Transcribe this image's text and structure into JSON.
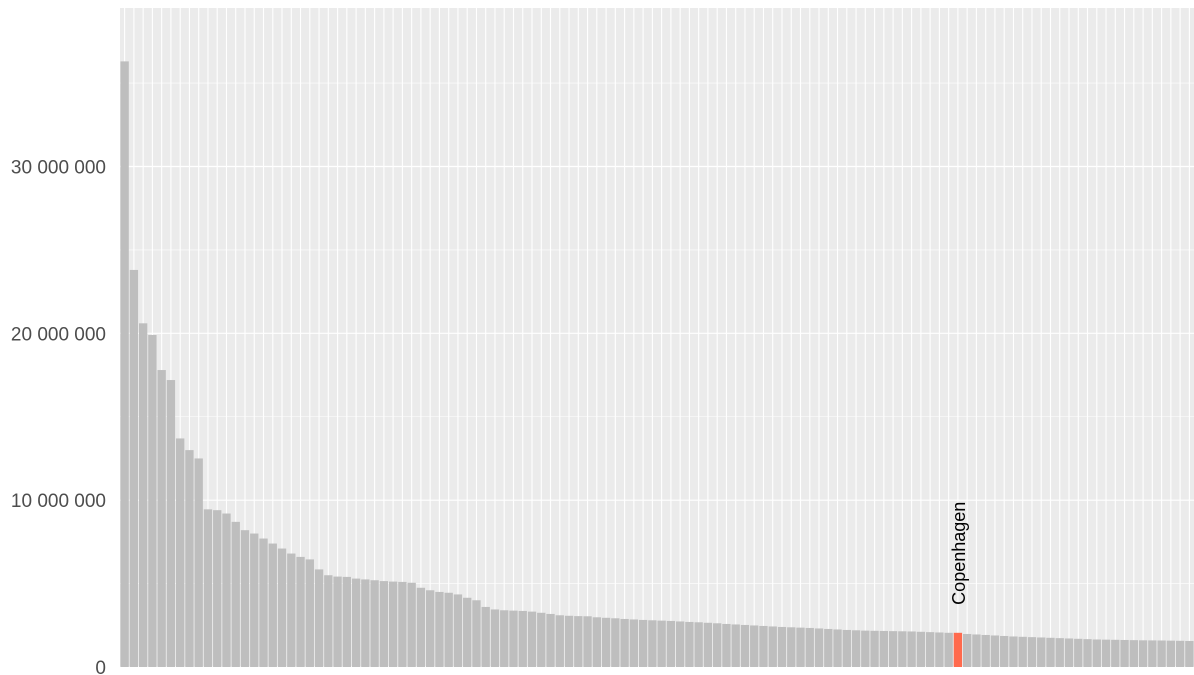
{
  "chart_data": {
    "type": "bar",
    "title": "",
    "xlabel": "",
    "ylabel": "",
    "ylim": [
      0,
      39500000
    ],
    "yticks": [
      0,
      10000000,
      20000000,
      30000000
    ],
    "ytick_labels": [
      "0",
      "10 000 000",
      "20 000 000",
      "30 000 000"
    ],
    "grid": true,
    "colors": {
      "panel": "#EBEBEB",
      "grid": "#FFFFFF",
      "bar": "#BEBEBE",
      "highlight": "#FF6A4D",
      "tick_label": "#4D4D4D",
      "annotation": "#000000"
    },
    "highlight_index": 90,
    "annotation": "Copenhagen",
    "values": [
      36300000,
      23800000,
      20600000,
      19900000,
      17800000,
      17200000,
      13700000,
      13000000,
      12500000,
      9450000,
      9400000,
      9200000,
      8700000,
      8200000,
      8000000,
      7700000,
      7400000,
      7100000,
      6800000,
      6600000,
      6450000,
      5850000,
      5500000,
      5420000,
      5400000,
      5300000,
      5250000,
      5200000,
      5150000,
      5120000,
      5100000,
      5050000,
      4750000,
      4600000,
      4500000,
      4450000,
      4350000,
      4150000,
      4000000,
      3600000,
      3450000,
      3400000,
      3380000,
      3360000,
      3320000,
      3250000,
      3180000,
      3100000,
      3070000,
      3050000,
      3040000,
      2980000,
      2950000,
      2920000,
      2880000,
      2850000,
      2820000,
      2800000,
      2780000,
      2760000,
      2730000,
      2700000,
      2680000,
      2650000,
      2620000,
      2580000,
      2550000,
      2520000,
      2490000,
      2460000,
      2430000,
      2400000,
      2380000,
      2360000,
      2340000,
      2310000,
      2280000,
      2250000,
      2220000,
      2200000,
      2180000,
      2170000,
      2160000,
      2150000,
      2140000,
      2130000,
      2110000,
      2090000,
      2070000,
      2050000,
      2050000,
      1980000,
      1950000,
      1920000,
      1890000,
      1860000,
      1830000,
      1810000,
      1790000,
      1770000,
      1750000,
      1730000,
      1710000,
      1690000,
      1670000,
      1650000,
      1640000,
      1630000,
      1620000,
      1610000,
      1600000,
      1595000,
      1590000,
      1580000,
      1570000,
      1560000
    ]
  }
}
